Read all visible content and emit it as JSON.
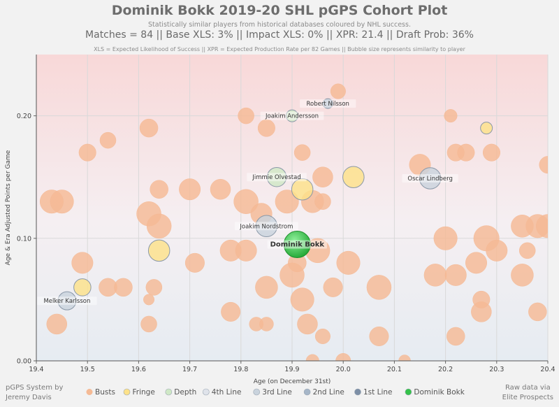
{
  "header": {
    "title": "Dominik Bokk 2019-20 SHL pGPS Cohort Plot",
    "subtitle": "Statistically similar players from historical databases coloured by NHL success.",
    "stats": "Matches = 84  ||  Base XLS: 3%  ||  Impact XLS: 0%  ||  XPR: 21.4  ||  Draft Prob: 36%",
    "note": "XLS = Expected Likelihood of Success || XPR = Expected Production Rate per 82 Games || Bubble size represents similarity to player"
  },
  "footer": {
    "left_line1": "pGPS System by",
    "left_line2": "Jeremy Davis",
    "right_line1": "Raw data via",
    "right_line2": "Elite Prospects"
  },
  "colors": {
    "Busts": "#f5ba95",
    "Fringe": "#fde28a",
    "Depth": "#cfe8c6",
    "4th Line": "#dfe3ea",
    "3rd Line": "#c9d3dd",
    "2nd Line": "#a6b6c8",
    "1st Line": "#7d8fa6",
    "Dominik Bokk": "#35c24a"
  },
  "chart_data": {
    "type": "scatter",
    "title": "Dominik Bokk 2019-20 SHL pGPS Cohort Plot",
    "xlabel": "Age (on December 31st)",
    "ylabel": "Age & Era Adjusted Points per Game",
    "xlim": [
      19.4,
      20.4
    ],
    "ylim": [
      0.0,
      0.25
    ],
    "xticks": [
      "19.4",
      "19.5",
      "19.6",
      "19.7",
      "19.8",
      "19.9",
      "20.0",
      "20.1",
      "20.2",
      "20.3",
      "20.4"
    ],
    "yticks": [
      "0.00",
      "0.10",
      "0.20"
    ],
    "legend_position": "bottom",
    "legend": [
      "Busts",
      "Fringe",
      "Depth",
      "4th Line",
      "3rd Line",
      "2nd Line",
      "1st Line",
      "Dominik Bokk"
    ],
    "labeled_points": [
      {
        "name": "Dominik Bokk",
        "x": 19.91,
        "y": 0.095,
        "group": "Dominik Bokk",
        "size": 1.0
      },
      {
        "name": "Robert Nilsson",
        "x": 19.97,
        "y": 0.21,
        "group": "2nd Line",
        "size": 0.2
      },
      {
        "name": "Joakim Andersson",
        "x": 19.9,
        "y": 0.2,
        "group": "Depth",
        "size": 0.3
      },
      {
        "name": "Jimmie Olvestad",
        "x": 19.87,
        "y": 0.15,
        "group": "Depth",
        "size": 0.65
      },
      {
        "name": "Oscar Lindberg",
        "x": 20.17,
        "y": 0.149,
        "group": "3rd Line",
        "size": 0.75
      },
      {
        "name": "Joakim Nordstrom",
        "x": 19.85,
        "y": 0.11,
        "group": "3rd Line",
        "size": 0.75
      },
      {
        "name": "Melker Karlsson",
        "x": 19.46,
        "y": 0.049,
        "group": "3rd Line",
        "size": 0.6
      }
    ],
    "points": [
      {
        "x": 19.43,
        "y": 0.13,
        "group": "Busts",
        "size": 0.85
      },
      {
        "x": 19.45,
        "y": 0.13,
        "group": "Busts",
        "size": 0.85
      },
      {
        "x": 19.44,
        "y": 0.03,
        "group": "Busts",
        "size": 0.7
      },
      {
        "x": 19.49,
        "y": 0.08,
        "group": "Busts",
        "size": 0.75
      },
      {
        "x": 19.5,
        "y": 0.17,
        "group": "Busts",
        "size": 0.55
      },
      {
        "x": 19.54,
        "y": 0.18,
        "group": "Busts",
        "size": 0.5
      },
      {
        "x": 19.54,
        "y": 0.06,
        "group": "Busts",
        "size": 0.6
      },
      {
        "x": 19.57,
        "y": 0.06,
        "group": "Busts",
        "size": 0.6
      },
      {
        "x": 19.62,
        "y": 0.19,
        "group": "Busts",
        "size": 0.6
      },
      {
        "x": 19.62,
        "y": 0.12,
        "group": "Busts",
        "size": 0.9
      },
      {
        "x": 19.64,
        "y": 0.11,
        "group": "Busts",
        "size": 0.9
      },
      {
        "x": 19.64,
        "y": 0.14,
        "group": "Busts",
        "size": 0.6
      },
      {
        "x": 19.63,
        "y": 0.06,
        "group": "Busts",
        "size": 0.5
      },
      {
        "x": 19.62,
        "y": 0.03,
        "group": "Busts",
        "size": 0.5
      },
      {
        "x": 19.62,
        "y": 0.05,
        "group": "Busts",
        "size": 0.25
      },
      {
        "x": 19.7,
        "y": 0.14,
        "group": "Busts",
        "size": 0.75
      },
      {
        "x": 19.71,
        "y": 0.08,
        "group": "Busts",
        "size": 0.65
      },
      {
        "x": 19.76,
        "y": 0.14,
        "group": "Busts",
        "size": 0.7
      },
      {
        "x": 19.78,
        "y": 0.09,
        "group": "Busts",
        "size": 0.75
      },
      {
        "x": 19.78,
        "y": 0.04,
        "group": "Busts",
        "size": 0.65
      },
      {
        "x": 19.81,
        "y": 0.2,
        "group": "Busts",
        "size": 0.5
      },
      {
        "x": 19.81,
        "y": 0.13,
        "group": "Busts",
        "size": 0.9
      },
      {
        "x": 19.84,
        "y": 0.12,
        "group": "Busts",
        "size": 0.75
      },
      {
        "x": 19.81,
        "y": 0.09,
        "group": "Busts",
        "size": 0.75
      },
      {
        "x": 19.85,
        "y": 0.19,
        "group": "Busts",
        "size": 0.55
      },
      {
        "x": 19.85,
        "y": 0.06,
        "group": "Busts",
        "size": 0.8
      },
      {
        "x": 19.83,
        "y": 0.03,
        "group": "Busts",
        "size": 0.4
      },
      {
        "x": 19.85,
        "y": 0.03,
        "group": "Busts",
        "size": 0.4
      },
      {
        "x": 19.89,
        "y": 0.13,
        "group": "Busts",
        "size": 0.85
      },
      {
        "x": 19.9,
        "y": 0.07,
        "group": "Busts",
        "size": 0.9
      },
      {
        "x": 19.91,
        "y": 0.08,
        "group": "Busts",
        "size": 0.6
      },
      {
        "x": 19.92,
        "y": 0.05,
        "group": "Busts",
        "size": 0.85
      },
      {
        "x": 19.93,
        "y": 0.03,
        "group": "Busts",
        "size": 0.7
      },
      {
        "x": 19.92,
        "y": 0.17,
        "group": "Busts",
        "size": 0.5
      },
      {
        "x": 19.94,
        "y": 0.13,
        "group": "Busts",
        "size": 0.8
      },
      {
        "x": 19.95,
        "y": 0.09,
        "group": "Busts",
        "size": 0.9
      },
      {
        "x": 19.96,
        "y": 0.15,
        "group": "Busts",
        "size": 0.7
      },
      {
        "x": 19.96,
        "y": 0.13,
        "group": "Busts",
        "size": 0.5
      },
      {
        "x": 19.96,
        "y": 0.02,
        "group": "Busts",
        "size": 0.45
      },
      {
        "x": 19.94,
        "y": 0.0,
        "group": "Busts",
        "size": 0.35
      },
      {
        "x": 19.99,
        "y": 0.22,
        "group": "Busts",
        "size": 0.45
      },
      {
        "x": 19.98,
        "y": 0.06,
        "group": "Busts",
        "size": 0.65
      },
      {
        "x": 20.01,
        "y": 0.08,
        "group": "Busts",
        "size": 0.85
      },
      {
        "x": 20.0,
        "y": 0.0,
        "group": "Busts",
        "size": 0.45
      },
      {
        "x": 20.07,
        "y": 0.06,
        "group": "Busts",
        "size": 0.9
      },
      {
        "x": 20.07,
        "y": 0.02,
        "group": "Busts",
        "size": 0.65
      },
      {
        "x": 20.15,
        "y": 0.16,
        "group": "Busts",
        "size": 0.75
      },
      {
        "x": 20.18,
        "y": 0.07,
        "group": "Busts",
        "size": 0.8
      },
      {
        "x": 20.2,
        "y": 0.1,
        "group": "Busts",
        "size": 0.85
      },
      {
        "x": 20.21,
        "y": 0.2,
        "group": "Busts",
        "size": 0.35
      },
      {
        "x": 20.22,
        "y": 0.17,
        "group": "Busts",
        "size": 0.55
      },
      {
        "x": 20.24,
        "y": 0.17,
        "group": "Busts",
        "size": 0.55
      },
      {
        "x": 20.22,
        "y": 0.07,
        "group": "Busts",
        "size": 0.75
      },
      {
        "x": 20.22,
        "y": 0.02,
        "group": "Busts",
        "size": 0.6
      },
      {
        "x": 20.26,
        "y": 0.08,
        "group": "Busts",
        "size": 0.75
      },
      {
        "x": 20.27,
        "y": 0.05,
        "group": "Busts",
        "size": 0.55
      },
      {
        "x": 20.27,
        "y": 0.04,
        "group": "Busts",
        "size": 0.7
      },
      {
        "x": 20.28,
        "y": 0.1,
        "group": "Busts",
        "size": 0.95
      },
      {
        "x": 20.3,
        "y": 0.09,
        "group": "Busts",
        "size": 0.75
      },
      {
        "x": 20.29,
        "y": 0.17,
        "group": "Busts",
        "size": 0.55
      },
      {
        "x": 20.35,
        "y": 0.11,
        "group": "Busts",
        "size": 0.8
      },
      {
        "x": 20.35,
        "y": 0.07,
        "group": "Busts",
        "size": 0.8
      },
      {
        "x": 20.36,
        "y": 0.09,
        "group": "Busts",
        "size": 0.5
      },
      {
        "x": 20.38,
        "y": 0.11,
        "group": "Busts",
        "size": 0.85
      },
      {
        "x": 20.4,
        "y": 0.11,
        "group": "Busts",
        "size": 0.85
      },
      {
        "x": 20.38,
        "y": 0.04,
        "group": "Busts",
        "size": 0.6
      },
      {
        "x": 20.4,
        "y": 0.16,
        "group": "Busts",
        "size": 0.55
      },
      {
        "x": 20.12,
        "y": 0.0,
        "group": "Busts",
        "size": 0.3
      },
      {
        "x": 19.64,
        "y": 0.09,
        "group": "Fringe",
        "size": 0.75
      },
      {
        "x": 19.49,
        "y": 0.06,
        "group": "Fringe",
        "size": 0.55
      },
      {
        "x": 19.92,
        "y": 0.14,
        "group": "Fringe",
        "size": 0.75
      },
      {
        "x": 20.02,
        "y": 0.15,
        "group": "Fringe",
        "size": 0.75
      },
      {
        "x": 20.28,
        "y": 0.19,
        "group": "Fringe",
        "size": 0.3
      }
    ]
  }
}
